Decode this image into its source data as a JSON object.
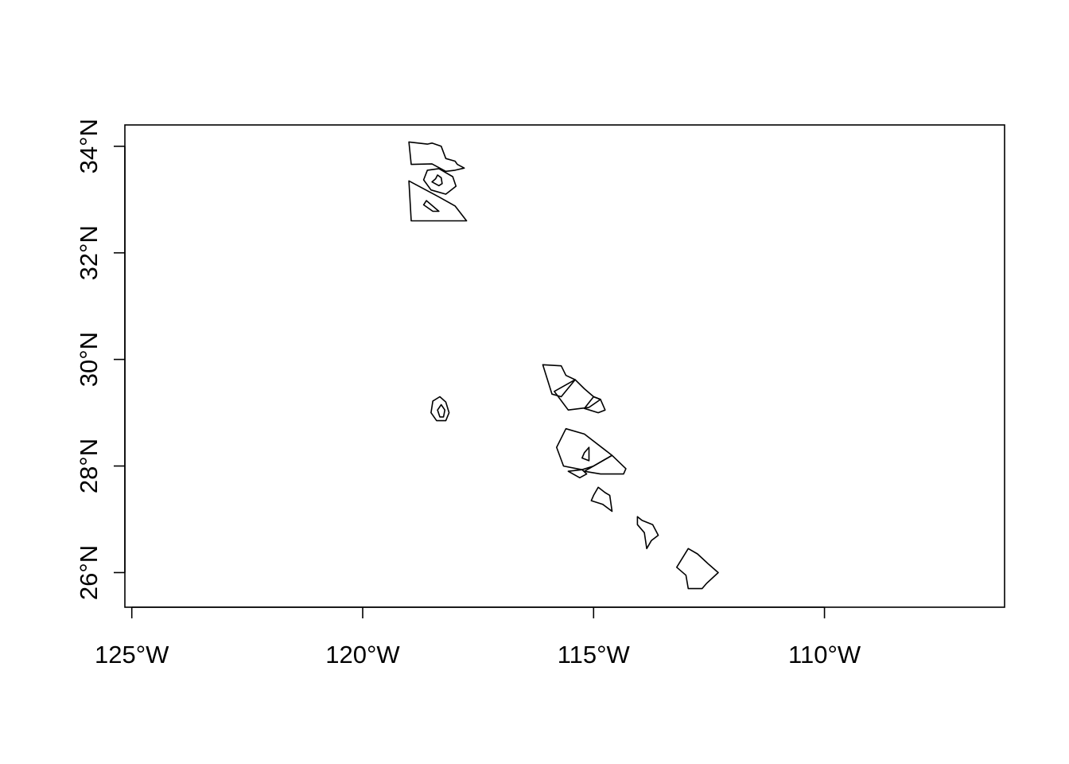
{
  "chart_data": {
    "type": "map",
    "title": "",
    "xlabel": "",
    "ylabel": "",
    "xlim": [
      -125.15,
      -106.1
    ],
    "ylim": [
      25.35,
      34.4
    ],
    "x_ticks": [
      {
        "value": -125,
        "label": "125°W"
      },
      {
        "value": -120,
        "label": "120°W"
      },
      {
        "value": -115,
        "label": "115°W"
      },
      {
        "value": -110,
        "label": "110°W"
      }
    ],
    "y_ticks": [
      {
        "value": 26,
        "label": "26°N"
      },
      {
        "value": 28,
        "label": "28°N"
      },
      {
        "value": 30,
        "label": "30°N"
      },
      {
        "value": 32,
        "label": "32°N"
      },
      {
        "value": 34,
        "label": "34°N"
      }
    ],
    "grid": false,
    "legend": "none",
    "stroke_color": "#000000",
    "polygons": [
      {
        "id": "north-a",
        "coords": [
          [
            -119.0,
            34.08
          ],
          [
            -118.6,
            34.04
          ],
          [
            -118.5,
            34.06
          ],
          [
            -118.3,
            34.0
          ],
          [
            -118.2,
            33.77
          ],
          [
            -118.0,
            33.72
          ],
          [
            -117.95,
            33.66
          ],
          [
            -117.8,
            33.59
          ],
          [
            -118.0,
            33.55
          ],
          [
            -118.2,
            33.53
          ],
          [
            -118.5,
            33.67
          ],
          [
            -118.95,
            33.66
          ],
          [
            -119.0,
            34.08
          ]
        ]
      },
      {
        "id": "north-b",
        "coords": [
          [
            -118.6,
            33.55
          ],
          [
            -118.35,
            33.58
          ],
          [
            -118.05,
            33.43
          ],
          [
            -117.98,
            33.25
          ],
          [
            -118.2,
            33.1
          ],
          [
            -118.52,
            33.18
          ],
          [
            -118.68,
            33.37
          ],
          [
            -118.6,
            33.55
          ]
        ]
      },
      {
        "id": "north-b-inner",
        "coords": [
          [
            -118.38,
            33.46
          ],
          [
            -118.3,
            33.41
          ],
          [
            -118.28,
            33.3
          ],
          [
            -118.35,
            33.26
          ],
          [
            -118.5,
            33.33
          ],
          [
            -118.42,
            33.39
          ],
          [
            -118.38,
            33.46
          ]
        ]
      },
      {
        "id": "north-c",
        "coords": [
          [
            -119.0,
            33.35
          ],
          [
            -118.35,
            33.05
          ],
          [
            -118.0,
            32.88
          ],
          [
            -117.75,
            32.6
          ],
          [
            -118.95,
            32.6
          ],
          [
            -119.0,
            33.35
          ]
        ]
      },
      {
        "id": "north-c-inner",
        "coords": [
          [
            -118.62,
            32.98
          ],
          [
            -118.35,
            32.78
          ],
          [
            -118.48,
            32.78
          ],
          [
            -118.68,
            32.9
          ],
          [
            -118.62,
            32.98
          ]
        ]
      },
      {
        "id": "guadalupe-outer",
        "coords": [
          [
            -118.33,
            29.3
          ],
          [
            -118.2,
            29.2
          ],
          [
            -118.13,
            29.0
          ],
          [
            -118.2,
            28.85
          ],
          [
            -118.4,
            28.85
          ],
          [
            -118.52,
            29.0
          ],
          [
            -118.48,
            29.22
          ],
          [
            -118.33,
            29.3
          ]
        ]
      },
      {
        "id": "guadalupe-inner",
        "coords": [
          [
            -118.3,
            29.15
          ],
          [
            -118.22,
            29.05
          ],
          [
            -118.25,
            28.92
          ],
          [
            -118.33,
            28.92
          ],
          [
            -118.38,
            29.05
          ],
          [
            -118.3,
            29.15
          ]
        ]
      },
      {
        "id": "mid-a",
        "coords": [
          [
            -116.1,
            29.9
          ],
          [
            -115.7,
            29.88
          ],
          [
            -115.6,
            29.7
          ],
          [
            -115.4,
            29.62
          ],
          [
            -115.7,
            29.3
          ],
          [
            -115.9,
            29.35
          ],
          [
            -116.1,
            29.9
          ]
        ]
      },
      {
        "id": "mid-b",
        "coords": [
          [
            -115.85,
            29.4
          ],
          [
            -115.4,
            29.62
          ],
          [
            -115.2,
            29.45
          ],
          [
            -115.0,
            29.3
          ],
          [
            -114.85,
            29.25
          ],
          [
            -115.1,
            29.1
          ],
          [
            -115.55,
            29.05
          ],
          [
            -115.85,
            29.4
          ]
        ]
      },
      {
        "id": "mid-c",
        "coords": [
          [
            -115.0,
            29.3
          ],
          [
            -114.85,
            29.25
          ],
          [
            -114.75,
            29.05
          ],
          [
            -114.9,
            29.0
          ],
          [
            -115.2,
            29.08
          ],
          [
            -115.0,
            29.3
          ]
        ]
      },
      {
        "id": "cedros-a",
        "coords": [
          [
            -115.6,
            28.7
          ],
          [
            -115.2,
            28.6
          ],
          [
            -114.6,
            28.2
          ],
          [
            -115.0,
            28.0
          ],
          [
            -115.25,
            27.93
          ],
          [
            -115.65,
            28.0
          ],
          [
            -115.8,
            28.35
          ],
          [
            -115.6,
            28.7
          ]
        ]
      },
      {
        "id": "cedros-b",
        "coords": [
          [
            -114.6,
            28.2
          ],
          [
            -114.3,
            27.95
          ],
          [
            -114.35,
            27.85
          ],
          [
            -114.85,
            27.85
          ],
          [
            -115.2,
            27.9
          ],
          [
            -115.0,
            28.0
          ],
          [
            -114.6,
            28.2
          ]
        ]
      },
      {
        "id": "cedros-c",
        "coords": [
          [
            -115.55,
            27.9
          ],
          [
            -115.25,
            27.93
          ],
          [
            -115.15,
            27.85
          ],
          [
            -115.3,
            27.78
          ],
          [
            -115.55,
            27.9
          ]
        ]
      },
      {
        "id": "cedros-inner",
        "coords": [
          [
            -115.1,
            28.35
          ],
          [
            -115.1,
            28.1
          ],
          [
            -115.25,
            28.15
          ],
          [
            -115.2,
            28.25
          ],
          [
            -115.1,
            28.35
          ]
        ]
      },
      {
        "id": "south-a",
        "coords": [
          [
            -114.9,
            27.6
          ],
          [
            -114.75,
            27.5
          ],
          [
            -114.65,
            27.45
          ],
          [
            -114.6,
            27.15
          ],
          [
            -114.8,
            27.28
          ],
          [
            -115.05,
            27.35
          ],
          [
            -115.0,
            27.45
          ],
          [
            -114.9,
            27.6
          ]
        ]
      },
      {
        "id": "south-b",
        "coords": [
          [
            -114.05,
            27.05
          ],
          [
            -113.95,
            26.98
          ],
          [
            -113.72,
            26.9
          ],
          [
            -113.6,
            26.7
          ],
          [
            -113.75,
            26.6
          ],
          [
            -113.85,
            26.45
          ],
          [
            -113.9,
            26.75
          ],
          [
            -114.05,
            26.9
          ],
          [
            -114.05,
            27.05
          ]
        ]
      },
      {
        "id": "south-c",
        "coords": [
          [
            -112.95,
            26.45
          ],
          [
            -112.75,
            26.35
          ],
          [
            -112.5,
            26.15
          ],
          [
            -112.3,
            26.0
          ],
          [
            -112.55,
            25.8
          ],
          [
            -112.65,
            25.7
          ],
          [
            -112.95,
            25.7
          ],
          [
            -113.0,
            25.95
          ],
          [
            -113.2,
            26.1
          ],
          [
            -112.95,
            26.45
          ]
        ]
      }
    ]
  }
}
